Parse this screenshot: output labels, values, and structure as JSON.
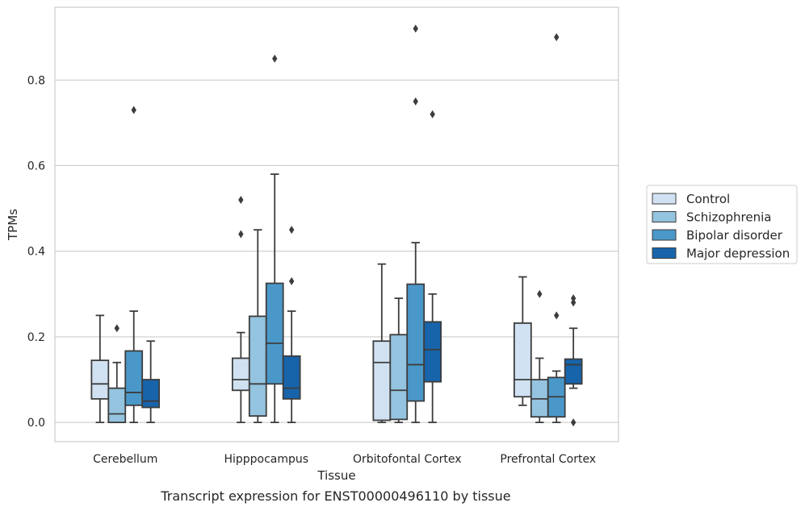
{
  "caption": "Transcript expression for ENST00000496110 by tissue",
  "chart_data": {
    "type": "boxplot",
    "xlabel": "Tissue",
    "ylabel": "TPMs",
    "ylim": [
      -0.045,
      0.97
    ],
    "yticks": [
      0.0,
      0.2,
      0.4,
      0.6,
      0.8
    ],
    "ytick_labels": [
      "0.0",
      "0.2",
      "0.4",
      "0.6",
      "0.8"
    ],
    "grid": "horizontal",
    "legend_position": "right",
    "categories": [
      "Cerebellum",
      "Hipppocampus",
      "Orbitofontal Cortex",
      "Prefrontal Cortex"
    ],
    "series": [
      {
        "name": "Control",
        "color": "#d0e1f2",
        "boxes": [
          {
            "whislo": 0.0,
            "q1": 0.055,
            "med": 0.09,
            "q3": 0.145,
            "whishi": 0.25,
            "fliers": []
          },
          {
            "whislo": 0.0,
            "q1": 0.075,
            "med": 0.1,
            "q3": 0.15,
            "whishi": 0.21,
            "fliers": [
              0.44,
              0.52
            ]
          },
          {
            "whislo": 0.0,
            "q1": 0.005,
            "med": 0.14,
            "q3": 0.19,
            "whishi": 0.37,
            "fliers": []
          },
          {
            "whislo": 0.04,
            "q1": 0.06,
            "med": 0.1,
            "q3": 0.232,
            "whishi": 0.34,
            "fliers": []
          }
        ]
      },
      {
        "name": "Schizophrenia",
        "color": "#94c4df",
        "boxes": [
          {
            "whislo": 0.0,
            "q1": 0.0,
            "med": 0.02,
            "q3": 0.08,
            "whishi": 0.14,
            "fliers": [
              0.22
            ]
          },
          {
            "whislo": 0.0,
            "q1": 0.015,
            "med": 0.09,
            "q3": 0.248,
            "whishi": 0.45,
            "fliers": []
          },
          {
            "whislo": 0.0,
            "q1": 0.007,
            "med": 0.075,
            "q3": 0.205,
            "whishi": 0.29,
            "fliers": []
          },
          {
            "whislo": 0.0,
            "q1": 0.013,
            "med": 0.055,
            "q3": 0.1,
            "whishi": 0.15,
            "fliers": [
              0.3
            ]
          }
        ]
      },
      {
        "name": "Bipolar disorder",
        "color": "#4a98c9",
        "boxes": [
          {
            "whislo": 0.0,
            "q1": 0.04,
            "med": 0.07,
            "q3": 0.167,
            "whishi": 0.26,
            "fliers": [
              0.73
            ]
          },
          {
            "whislo": 0.0,
            "q1": 0.09,
            "med": 0.185,
            "q3": 0.325,
            "whishi": 0.58,
            "fliers": [
              0.85
            ]
          },
          {
            "whislo": 0.0,
            "q1": 0.05,
            "med": 0.135,
            "q3": 0.323,
            "whishi": 0.42,
            "fliers": [
              0.75,
              0.92
            ]
          },
          {
            "whislo": 0.0,
            "q1": 0.013,
            "med": 0.06,
            "q3": 0.105,
            "whishi": 0.12,
            "fliers": [
              0.25,
              0.9
            ]
          }
        ]
      },
      {
        "name": "Major depression",
        "color": "#1764ab",
        "boxes": [
          {
            "whislo": 0.0,
            "q1": 0.035,
            "med": 0.05,
            "q3": 0.1,
            "whishi": 0.19,
            "fliers": []
          },
          {
            "whislo": 0.0,
            "q1": 0.055,
            "med": 0.08,
            "q3": 0.155,
            "whishi": 0.26,
            "fliers": [
              0.33,
              0.45
            ]
          },
          {
            "whislo": 0.0,
            "q1": 0.095,
            "med": 0.17,
            "q3": 0.235,
            "whishi": 0.3,
            "fliers": [
              0.72
            ]
          },
          {
            "whislo": 0.08,
            "q1": 0.09,
            "med": 0.135,
            "q3": 0.148,
            "whishi": 0.22,
            "fliers": [
              0.0,
              0.28,
              0.29
            ]
          }
        ]
      }
    ]
  }
}
